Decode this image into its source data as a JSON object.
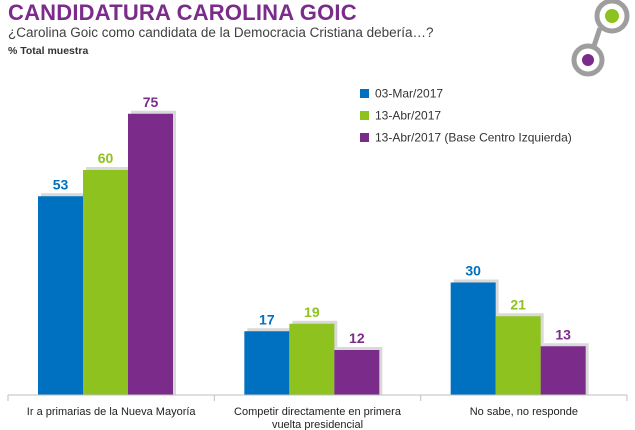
{
  "header": {
    "title": "CANDIDATURA CAROLINA GOIC",
    "subtitle": "¿Carolina Goic como candidata de la Democracia Cristiana debería…?",
    "base_note": "% Total muestra"
  },
  "colors": {
    "series": [
      "#0070C0",
      "#8DC21F",
      "#7B2C8B"
    ],
    "logo_green": "#8DC21F",
    "logo_purple": "#7B2C8B",
    "logo_gray": "#9E9E9E"
  },
  "chart_data": {
    "type": "bar",
    "title": "CANDIDATURA CAROLINA GOIC",
    "xlabel": "",
    "ylabel": "",
    "ylim": [
      0,
      80
    ],
    "grid": false,
    "legend_position": "top-right",
    "categories": [
      [
        "Ir a primarias de la Nueva Mayoría"
      ],
      [
        "Competir directamente en primera",
        "vuelta presidencial"
      ],
      [
        "No sabe, no responde"
      ]
    ],
    "series": [
      {
        "name": "03-Mar/2017",
        "values": [
          53,
          17,
          30
        ]
      },
      {
        "name": "13-Abr/2017",
        "values": [
          60,
          19,
          21
        ]
      },
      {
        "name": "13-Abr/2017 (Base Centro Izquierda)",
        "values": [
          75,
          12,
          13
        ]
      }
    ]
  }
}
